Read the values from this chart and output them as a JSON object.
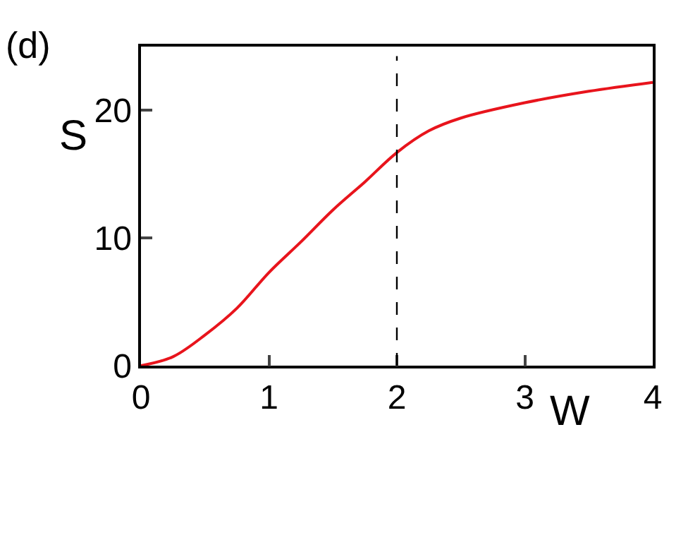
{
  "chart_data": {
    "type": "line",
    "title": "(d)",
    "xlabel": "W",
    "ylabel": "S",
    "x": [
      0,
      0.25,
      0.5,
      0.75,
      1,
      1.25,
      1.5,
      1.75,
      2,
      2.25,
      2.5,
      3,
      3.5,
      4
    ],
    "series": [
      {
        "color": "#e8141c",
        "values": [
          0,
          0.7,
          2.4,
          4.5,
          7.3,
          9.7,
          12.2,
          14.4,
          16.7,
          18.4,
          19.4,
          20.6,
          21.5,
          22.2
        ]
      }
    ],
    "xlim": [
      0,
      4
    ],
    "xticks": [
      0,
      1,
      2,
      3,
      4
    ],
    "ylim": [
      0,
      25
    ],
    "yticks": [
      0,
      10,
      20
    ],
    "ref_lines": [
      {
        "axis": "x",
        "value": 2,
        "color": "#000000",
        "line_style": "dashed"
      }
    ],
    "legend": false,
    "marker": "none",
    "line_style": "solid"
  }
}
